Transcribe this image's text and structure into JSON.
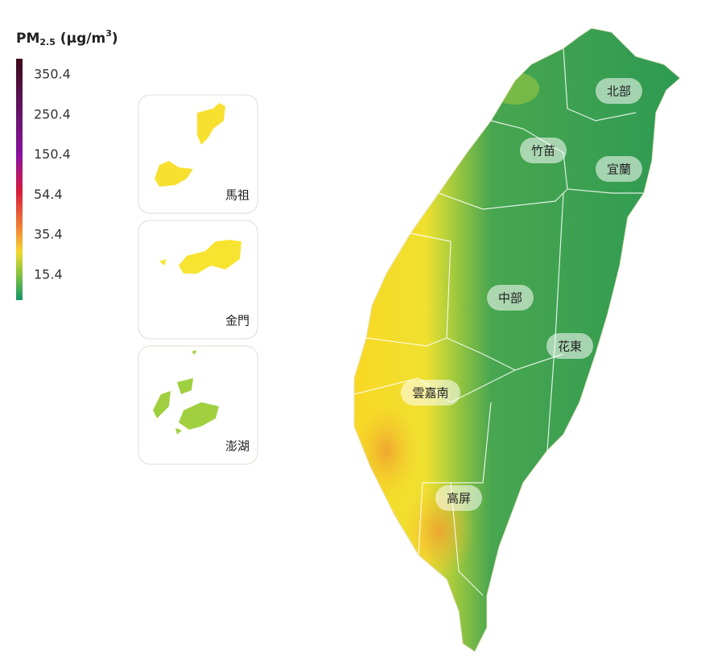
{
  "legend": {
    "title": {
      "main": "PM",
      "sub": "2.5",
      "unit": " (μg/m",
      "sup": "3",
      "close": ")"
    },
    "ticks": [
      "350.4",
      "250.4",
      "150.4",
      "54.4",
      "35.4",
      "15.4"
    ]
  },
  "insets": [
    {
      "label": "馬祖"
    },
    {
      "label": "金門"
    },
    {
      "label": "澎湖"
    }
  ],
  "regions": [
    {
      "label": "北部"
    },
    {
      "label": "竹苗"
    },
    {
      "label": "宜蘭"
    },
    {
      "label": "中部"
    },
    {
      "label": "花東"
    },
    {
      "label": "雲嘉南"
    },
    {
      "label": "高屏"
    }
  ]
}
